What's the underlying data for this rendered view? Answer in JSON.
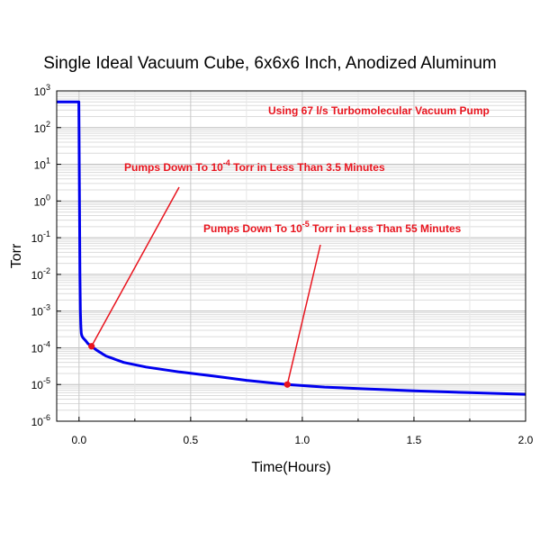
{
  "chart_data": {
    "type": "line",
    "title": "Single Ideal Vacuum Cube, 6x6x6 Inch, Anodized Aluminum",
    "xlabel": "Time(Hours)",
    "ylabel": "Torr",
    "xlim": [
      -0.1,
      2.0
    ],
    "ylim": [
      1e-06,
      1000
    ],
    "yscale": "log",
    "grid": true,
    "xticks": [
      {
        "value": 0.0,
        "label": "0.0"
      },
      {
        "value": 0.5,
        "label": "0.5"
      },
      {
        "value": 1.0,
        "label": "1.0"
      },
      {
        "value": 1.5,
        "label": "1.5"
      },
      {
        "value": 2.0,
        "label": "2.0"
      }
    ],
    "yticks": [
      {
        "value": 1000,
        "base": "10",
        "exp": "3"
      },
      {
        "value": 100,
        "base": "10",
        "exp": "2"
      },
      {
        "value": 10,
        "base": "10",
        "exp": "1"
      },
      {
        "value": 1,
        "base": "10",
        "exp": "0"
      },
      {
        "value": 0.1,
        "base": "10",
        "exp": "-1"
      },
      {
        "value": 0.01,
        "base": "10",
        "exp": "-2"
      },
      {
        "value": 0.001,
        "base": "10",
        "exp": "-3"
      },
      {
        "value": 0.0001,
        "base": "10",
        "exp": "-4"
      },
      {
        "value": 1e-05,
        "base": "10",
        "exp": "-5"
      },
      {
        "value": 1e-06,
        "base": "10",
        "exp": "-6"
      }
    ],
    "series": [
      {
        "color": "#0000ee",
        "x": [
          -0.1,
          -0.01,
          -0.005,
          -0.001,
          0.0,
          0.002,
          0.004,
          0.006,
          0.008,
          0.01,
          0.012,
          0.015,
          0.02,
          0.03,
          0.04,
          0.056,
          0.08,
          0.12,
          0.2,
          0.3,
          0.45,
          0.6,
          0.75,
          0.933,
          1.1,
          1.3,
          1.5,
          1.75,
          2.0
        ],
        "y": [
          500,
          500,
          500,
          500,
          100,
          1,
          0.01,
          0.001,
          0.0004,
          0.00025,
          0.00022,
          0.0002,
          0.00018,
          0.000155,
          0.00013,
          0.00011,
          8.5e-05,
          6e-05,
          4e-05,
          3e-05,
          2.2e-05,
          1.7e-05,
          1.3e-05,
          1e-05,
          8.5e-06,
          7.5e-06,
          6.7e-06,
          6e-06,
          5.4e-06
        ]
      }
    ],
    "markers": [
      {
        "x": 0.056,
        "y": 0.00011,
        "color": "#e8141e"
      },
      {
        "x": 0.933,
        "y": 1e-05,
        "color": "#e8141e"
      }
    ],
    "annotations": [
      {
        "id": "pump-model",
        "color": "#e8141e",
        "text": "Using 67 l/s Turbomolecular Vacuum Pump",
        "pre": "Using 67 l/s Turbomolecular Vacuum Pump",
        "sup": "",
        "post": ""
      },
      {
        "id": "pumpdown-4",
        "color": "#e8141e",
        "text": "Pumps Down To 10-4 Torr in Less Than 3.5 Minutes",
        "pre": "Pumps Down To 10",
        "sup": "-4",
        "post": " Torr in Less Than 3.5 Minutes"
      },
      {
        "id": "pumpdown-5",
        "color": "#e8141e",
        "text": "Pumps Down To 10-5 Torr in Less Than 55 Minutes",
        "pre": "Pumps Down To 10",
        "sup": "-5",
        "post": " Torr in Less Than 55 Minutes"
      }
    ]
  }
}
